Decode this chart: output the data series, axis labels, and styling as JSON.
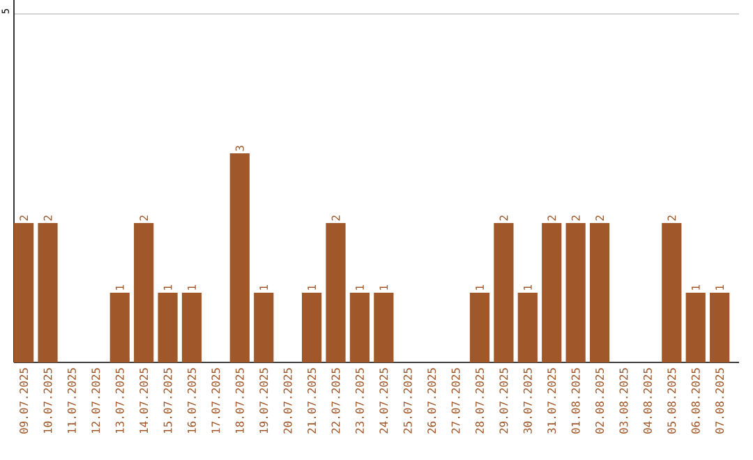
{
  "chart_data": {
    "type": "bar",
    "categories": [
      "09.07.2025",
      "10.07.2025",
      "11.07.2025",
      "12.07.2025",
      "13.07.2025",
      "14.07.2025",
      "15.07.2025",
      "16.07.2025",
      "17.07.2025",
      "18.07.2025",
      "19.07.2025",
      "20.07.2025",
      "21.07.2025",
      "22.07.2025",
      "23.07.2025",
      "24.07.2025",
      "25.07.2025",
      "26.07.2025",
      "27.07.2025",
      "28.07.2025",
      "29.07.2025",
      "30.07.2025",
      "31.07.2025",
      "01.08.2025",
      "02.08.2025",
      "03.08.2025",
      "04.08.2025",
      "05.08.2025",
      "06.08.2025",
      "07.08.2025"
    ],
    "values": [
      2,
      2,
      0,
      0,
      1,
      2,
      1,
      1,
      0,
      3,
      1,
      0,
      1,
      2,
      1,
      1,
      0,
      0,
      0,
      1,
      2,
      1,
      2,
      2,
      2,
      0,
      0,
      2,
      1,
      1
    ],
    "value_labels": [
      "2",
      "2",
      null,
      null,
      "1",
      "2",
      "1",
      "1",
      null,
      "3",
      "1",
      null,
      "1",
      "2",
      "1",
      "1",
      null,
      null,
      null,
      "1",
      "2",
      "1",
      "2",
      "2",
      "2",
      null,
      null,
      "2",
      "1",
      "1"
    ],
    "color": "#a0582a",
    "ylim": [
      0,
      5.2
    ],
    "yticks": [
      5
    ],
    "grid": "y"
  }
}
